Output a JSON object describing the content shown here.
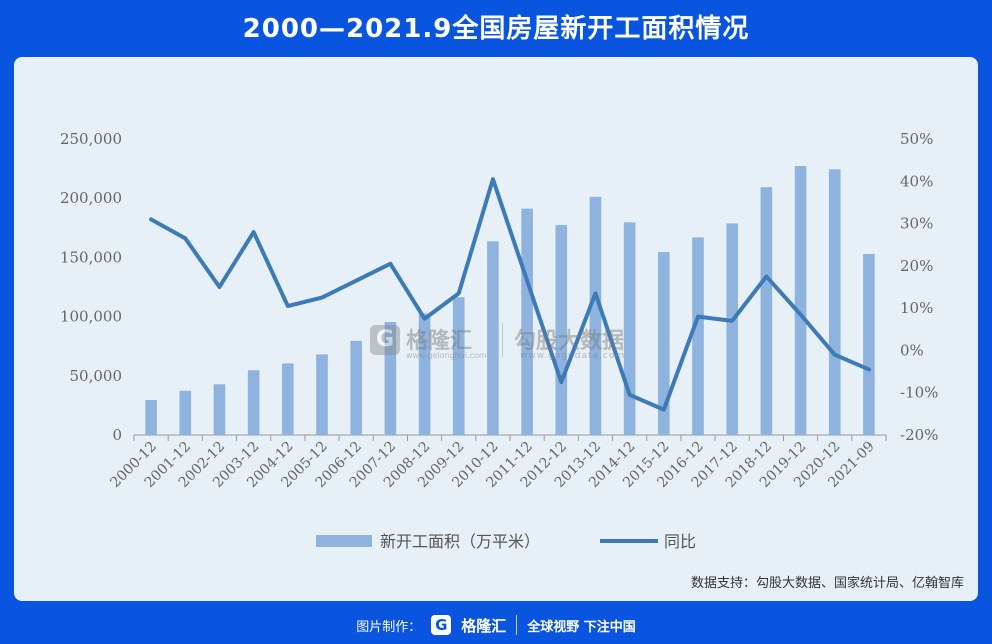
{
  "title": "2000—2021.9全国房屋新开工面积情况",
  "source_note": "数据支持：勾股大数据、国家统计局、亿翰智库",
  "watermark": {
    "logo_letter": "G",
    "name1": "格隆汇",
    "url1": "www.gelonghui.com",
    "name2": "勾股大数据",
    "url2": "www.gogudata.com"
  },
  "footer": {
    "label": "图片制作：",
    "logo_letter": "G",
    "brand": "格隆汇",
    "slogan": "全球视野 下注中国"
  },
  "colors": {
    "bar": "#8fb3df",
    "line": "#3d7ab8",
    "background": "#0a55e0",
    "panel": "#e7f0f6"
  },
  "chart_data": {
    "type": "bar",
    "categories": [
      "2000-12",
      "2001-12",
      "2002-12",
      "2003-12",
      "2004-12",
      "2005-12",
      "2006-12",
      "2007-12",
      "2008-12",
      "2009-12",
      "2010-12",
      "2011-12",
      "2012-12",
      "2013-12",
      "2014-12",
      "2015-12",
      "2016-12",
      "2017-12",
      "2018-12",
      "2019-12",
      "2020-12",
      "2021-09"
    ],
    "series": [
      {
        "name": "新开工面积（万平米）",
        "type": "bar",
        "axis": "left",
        "values": [
          29600,
          37400,
          42800,
          54700,
          60400,
          68100,
          79500,
          95400,
          102600,
          116400,
          163600,
          191200,
          177300,
          201200,
          179600,
          154500,
          166900,
          178700,
          209300,
          227200,
          224400,
          152900
        ]
      },
      {
        "name": "同比",
        "type": "line",
        "axis": "right",
        "values": [
          31,
          26.5,
          15,
          28,
          10.5,
          12.5,
          16.5,
          20.5,
          7.5,
          13.5,
          40.5,
          16.5,
          -7.5,
          13.5,
          -10.5,
          -14,
          8,
          7,
          17.5,
          8.5,
          -1,
          -4.5
        ]
      }
    ],
    "y_left": {
      "min": 0,
      "max": 250000,
      "ticks": [
        "0",
        "50,000",
        "100,000",
        "150,000",
        "200,000",
        "250,000"
      ]
    },
    "y_right": {
      "min": -20,
      "max": 50,
      "ticks": [
        "-20%",
        "-10%",
        "0%",
        "10%",
        "20%",
        "30%",
        "40%",
        "50%"
      ]
    },
    "grid": false,
    "legend": "bottom"
  }
}
